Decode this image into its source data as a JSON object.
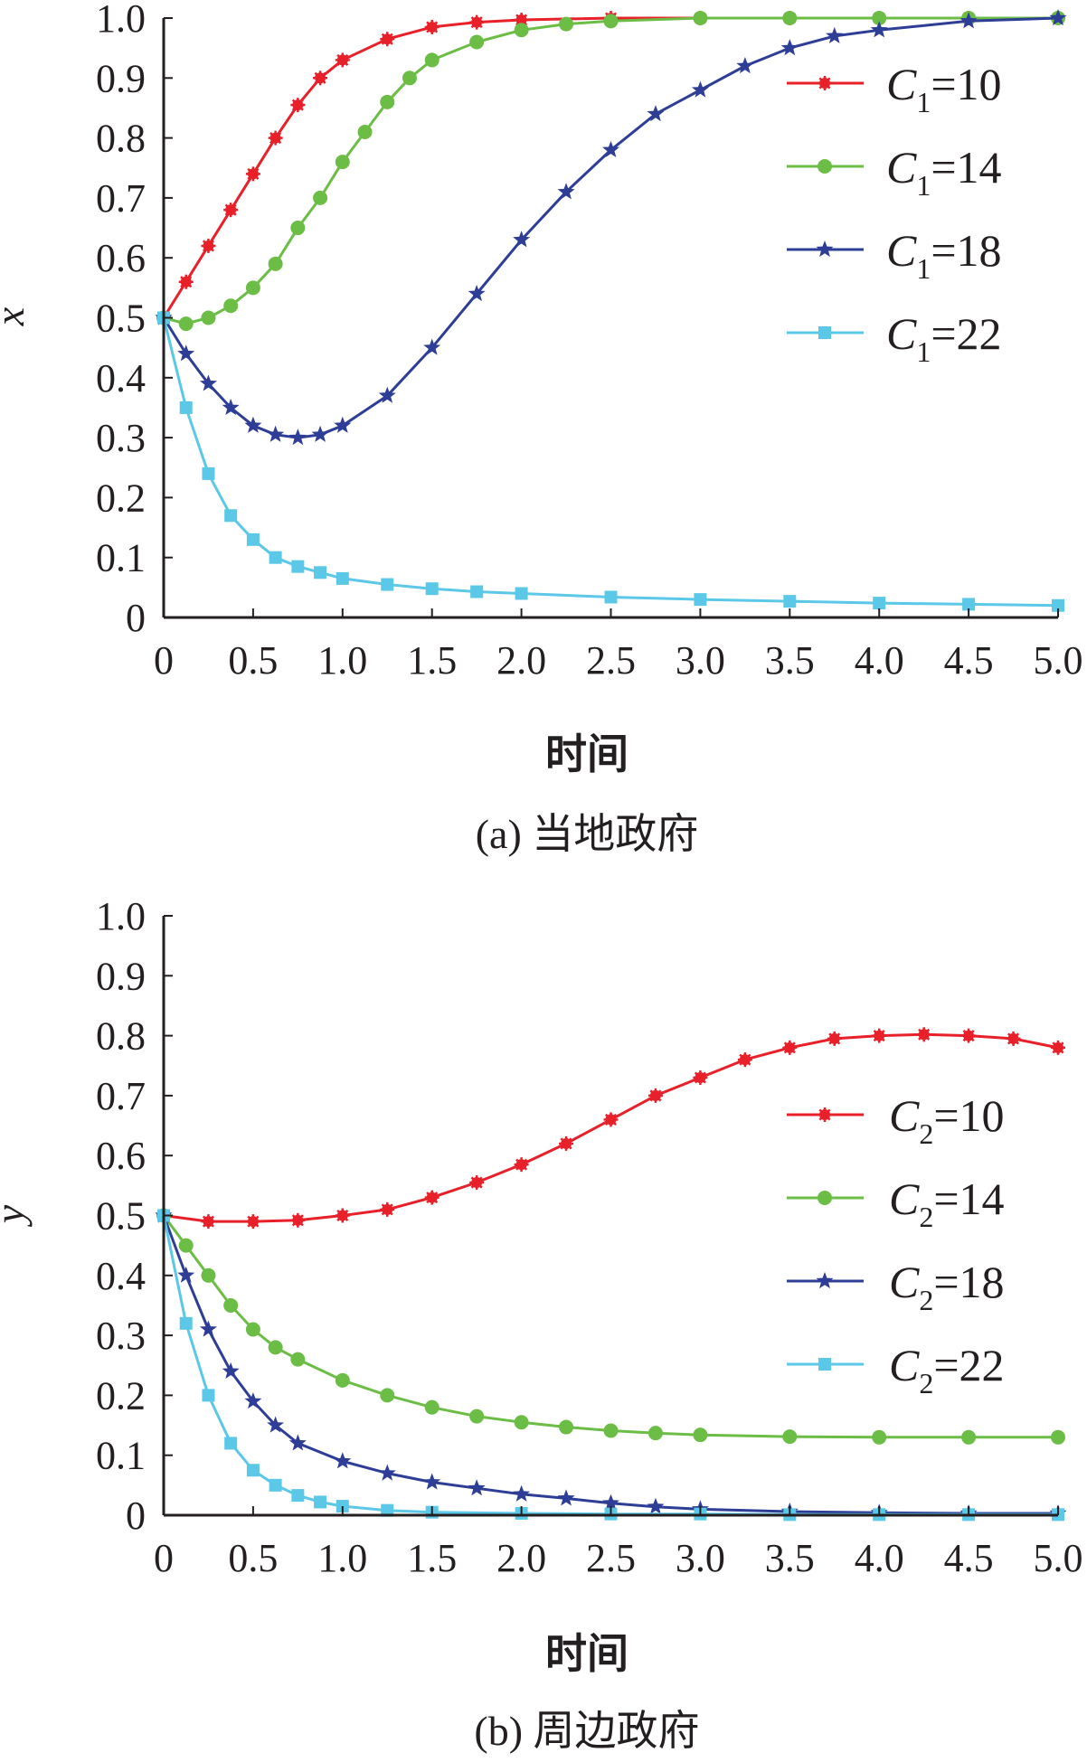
{
  "chart_data": [
    {
      "type": "line",
      "caption": "(a) 当地政府",
      "ylabel": "x",
      "xlabel": "时间",
      "xlim": [
        0,
        5.0
      ],
      "ylim": [
        0,
        1.0
      ],
      "xticks": [
        "0",
        "0.5",
        "1.0",
        "1.5",
        "2.0",
        "2.5",
        "3.0",
        "3.5",
        "4.0",
        "4.5",
        "5.0"
      ],
      "yticks": [
        "0",
        "0.1",
        "0.2",
        "0.3",
        "0.4",
        "0.5",
        "0.6",
        "0.7",
        "0.8",
        "0.9",
        "1.0"
      ],
      "legend_position": "right",
      "series": [
        {
          "name": "C1=10",
          "legend_main": "C",
          "legend_sub": "1",
          "legend_tail": "=10",
          "color": "#e8202a",
          "marker": "asterisk",
          "x": [
            0,
            0.125,
            0.25,
            0.375,
            0.5,
            0.625,
            0.75,
            0.875,
            1.0,
            1.25,
            1.5,
            1.75,
            2.0,
            2.5,
            3.0,
            3.5,
            4.0,
            4.5,
            5.0
          ],
          "y": [
            0.5,
            0.56,
            0.62,
            0.68,
            0.74,
            0.8,
            0.855,
            0.9,
            0.93,
            0.965,
            0.985,
            0.993,
            0.997,
            1.0,
            1.0,
            1.0,
            1.0,
            1.0,
            1.0
          ]
        },
        {
          "name": "C1=14",
          "legend_main": "C",
          "legend_sub": "1",
          "legend_tail": "=14",
          "color": "#6cbd45",
          "marker": "circle",
          "x": [
            0,
            0.125,
            0.25,
            0.375,
            0.5,
            0.625,
            0.75,
            0.875,
            1.0,
            1.125,
            1.25,
            1.375,
            1.5,
            1.75,
            2.0,
            2.25,
            2.5,
            3.0,
            3.5,
            4.0,
            4.5,
            5.0
          ],
          "y": [
            0.5,
            0.49,
            0.5,
            0.52,
            0.55,
            0.59,
            0.65,
            0.7,
            0.76,
            0.81,
            0.86,
            0.9,
            0.93,
            0.96,
            0.98,
            0.99,
            0.995,
            1.0,
            1.0,
            1.0,
            1.0,
            1.0
          ]
        },
        {
          "name": "C1=18",
          "legend_main": "C",
          "legend_sub": "1",
          "legend_tail": "=18",
          "color": "#2e3e97",
          "marker": "star",
          "x": [
            0,
            0.125,
            0.25,
            0.375,
            0.5,
            0.625,
            0.75,
            0.875,
            1.0,
            1.25,
            1.5,
            1.75,
            2.0,
            2.25,
            2.5,
            2.75,
            3.0,
            3.25,
            3.5,
            3.75,
            4.0,
            4.5,
            5.0
          ],
          "y": [
            0.5,
            0.44,
            0.39,
            0.35,
            0.32,
            0.305,
            0.3,
            0.305,
            0.32,
            0.37,
            0.45,
            0.54,
            0.63,
            0.71,
            0.78,
            0.84,
            0.88,
            0.92,
            0.95,
            0.97,
            0.98,
            0.995,
            1.0
          ]
        },
        {
          "name": "C1=22",
          "legend_main": "C",
          "legend_sub": "1",
          "legend_tail": "=22",
          "color": "#5bc8e8",
          "marker": "square",
          "x": [
            0,
            0.125,
            0.25,
            0.375,
            0.5,
            0.625,
            0.75,
            0.875,
            1.0,
            1.25,
            1.5,
            1.75,
            2.0,
            2.5,
            3.0,
            3.5,
            4.0,
            4.5,
            5.0
          ],
          "y": [
            0.5,
            0.35,
            0.24,
            0.17,
            0.13,
            0.1,
            0.085,
            0.075,
            0.065,
            0.055,
            0.048,
            0.043,
            0.04,
            0.034,
            0.03,
            0.027,
            0.024,
            0.022,
            0.02
          ]
        }
      ]
    },
    {
      "type": "line",
      "caption": "(b) 周边政府",
      "ylabel": "y",
      "xlabel": "时间",
      "xlim": [
        0,
        5.0
      ],
      "ylim": [
        0,
        1.0
      ],
      "xticks": [
        "0",
        "0.5",
        "1.0",
        "1.5",
        "2.0",
        "2.5",
        "3.0",
        "3.5",
        "4.0",
        "4.5",
        "5.0"
      ],
      "yticks": [
        "0",
        "0.1",
        "0.2",
        "0.3",
        "0.4",
        "0.5",
        "0.6",
        "0.7",
        "0.8",
        "0.9",
        "1.0"
      ],
      "legend_position": "right",
      "series": [
        {
          "name": "C2=10",
          "legend_main": "C",
          "legend_sub": "2",
          "legend_tail": "=10",
          "color": "#e8202a",
          "marker": "asterisk",
          "x": [
            0,
            0.25,
            0.5,
            0.75,
            1.0,
            1.25,
            1.5,
            1.75,
            2.0,
            2.25,
            2.5,
            2.75,
            3.0,
            3.25,
            3.5,
            3.75,
            4.0,
            4.25,
            4.5,
            4.75,
            5.0
          ],
          "y": [
            0.5,
            0.49,
            0.49,
            0.492,
            0.5,
            0.51,
            0.53,
            0.555,
            0.585,
            0.62,
            0.66,
            0.7,
            0.73,
            0.76,
            0.78,
            0.795,
            0.8,
            0.802,
            0.8,
            0.795,
            0.78
          ]
        },
        {
          "name": "C2=14",
          "legend_main": "C",
          "legend_sub": "2",
          "legend_tail": "=14",
          "color": "#6cbd45",
          "marker": "circle",
          "x": [
            0,
            0.125,
            0.25,
            0.375,
            0.5,
            0.625,
            0.75,
            1.0,
            1.25,
            1.5,
            1.75,
            2.0,
            2.25,
            2.5,
            2.75,
            3.0,
            3.5,
            4.0,
            4.5,
            5.0
          ],
          "y": [
            0.5,
            0.45,
            0.4,
            0.35,
            0.31,
            0.28,
            0.26,
            0.225,
            0.2,
            0.18,
            0.165,
            0.155,
            0.147,
            0.141,
            0.137,
            0.134,
            0.131,
            0.13,
            0.13,
            0.13
          ]
        },
        {
          "name": "C2=18",
          "legend_main": "C",
          "legend_sub": "2",
          "legend_tail": "=18",
          "color": "#2e3e97",
          "marker": "star",
          "x": [
            0,
            0.125,
            0.25,
            0.375,
            0.5,
            0.625,
            0.75,
            1.0,
            1.25,
            1.5,
            1.75,
            2.0,
            2.25,
            2.5,
            2.75,
            3.0,
            3.5,
            4.0,
            4.5,
            5.0
          ],
          "y": [
            0.5,
            0.4,
            0.31,
            0.24,
            0.19,
            0.15,
            0.12,
            0.09,
            0.07,
            0.055,
            0.045,
            0.035,
            0.028,
            0.02,
            0.014,
            0.01,
            0.006,
            0.004,
            0.003,
            0.003
          ]
        },
        {
          "name": "C2=22",
          "legend_main": "C",
          "legend_sub": "2",
          "legend_tail": "=22",
          "color": "#5bc8e8",
          "marker": "square",
          "x": [
            0,
            0.125,
            0.25,
            0.375,
            0.5,
            0.625,
            0.75,
            0.875,
            1.0,
            1.25,
            1.5,
            2.0,
            2.5,
            3.0,
            3.5,
            4.0,
            4.5,
            5.0
          ],
          "y": [
            0.5,
            0.32,
            0.2,
            0.12,
            0.075,
            0.05,
            0.033,
            0.022,
            0.015,
            0.008,
            0.005,
            0.003,
            0.002,
            0.002,
            0.001,
            0.001,
            0.001,
            0.001
          ]
        }
      ]
    }
  ]
}
